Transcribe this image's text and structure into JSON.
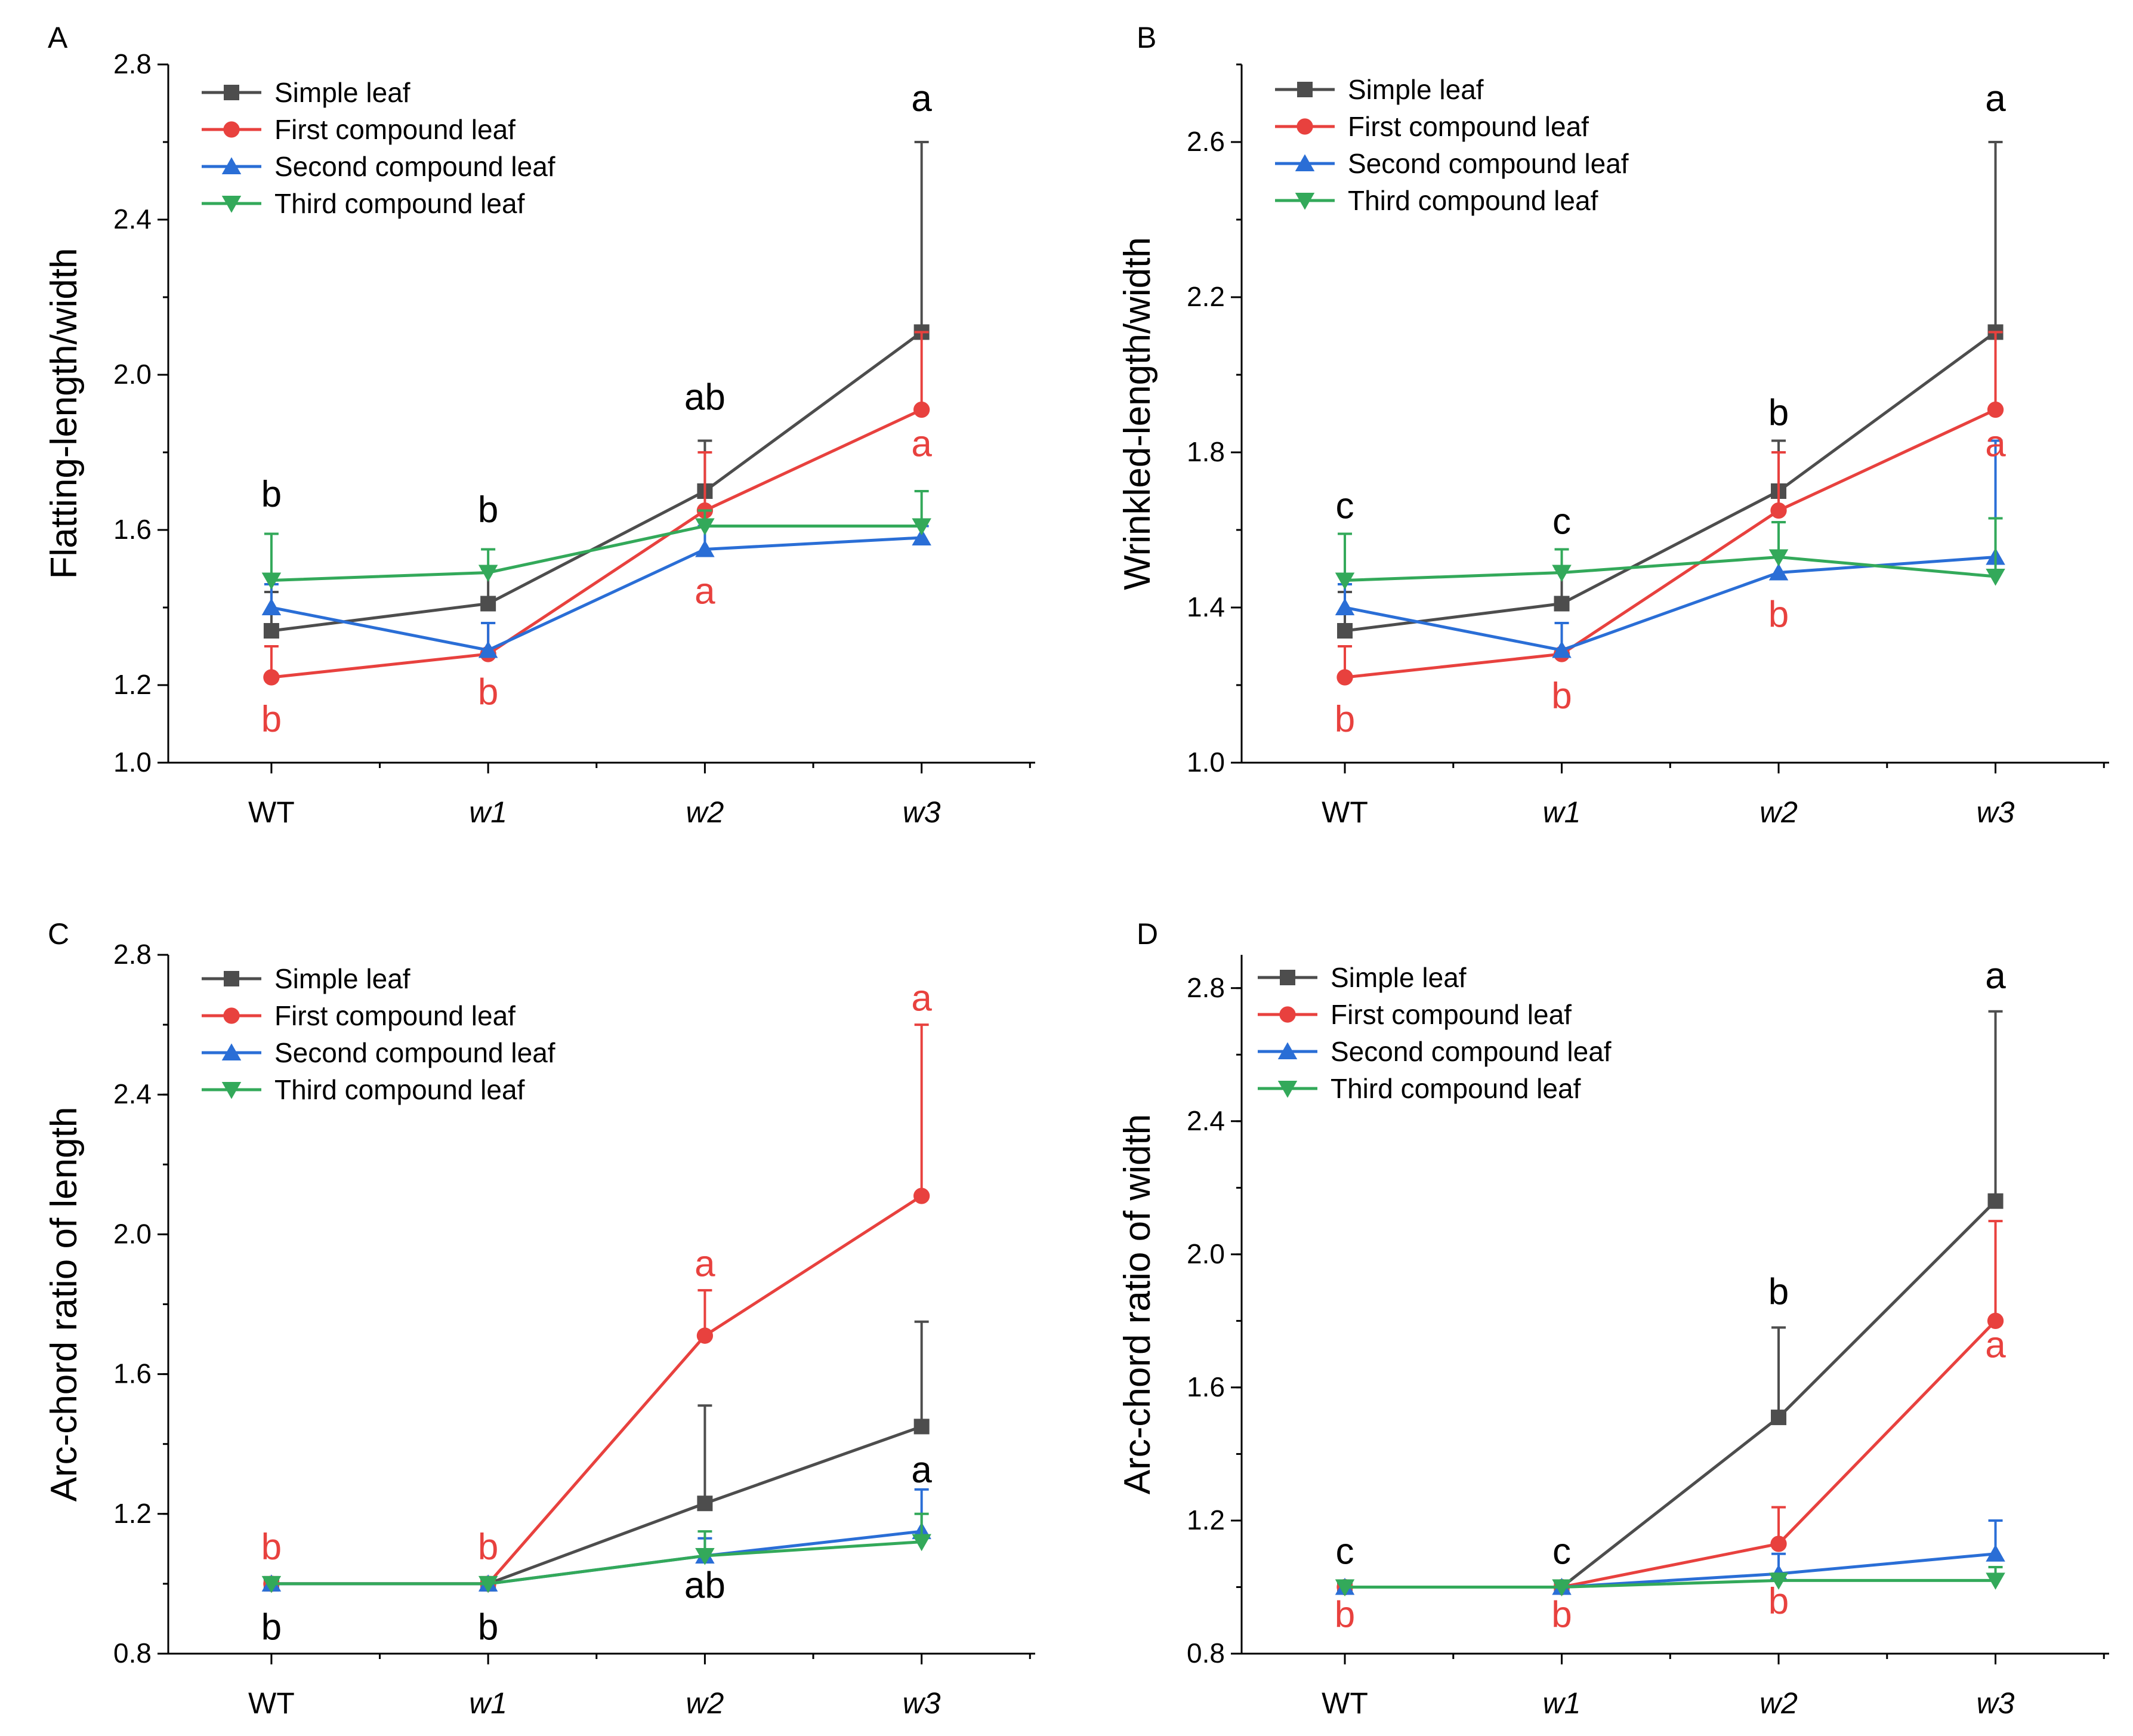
{
  "chart_data": [
    {
      "panel": "A",
      "type": "line",
      "ylabel": "Flatting-length/width",
      "categories": [
        "WT",
        "w1",
        "w2",
        "w3"
      ],
      "ylim": [
        1.0,
        2.8
      ],
      "yticks": [
        "1.0",
        "1.2",
        "1.6",
        "2.0",
        "2.4",
        "2.8"
      ],
      "ytick_values": [
        1.0,
        1.2,
        1.6,
        2.0,
        2.4,
        2.8
      ],
      "minor_step": 0.2,
      "series": [
        {
          "name": "Simple leaf",
          "color": "#4d4d4d",
          "marker": "square",
          "values": [
            1.34,
            1.41,
            1.7,
            2.11
          ],
          "err": [
            0.1,
            0.09,
            0.13,
            0.49
          ]
        },
        {
          "name": "First compound leaf",
          "color": "#e8413e",
          "marker": "circle",
          "values": [
            1.22,
            1.28,
            1.65,
            1.91
          ],
          "err": [
            0.08,
            0.08,
            0.15,
            0.2
          ]
        },
        {
          "name": "Second compound leaf",
          "color": "#2a6ed6",
          "marker": "triangle-up",
          "values": [
            1.4,
            1.29,
            1.55,
            1.58
          ],
          "err": [
            0.06,
            0.07,
            0.06,
            0.03
          ]
        },
        {
          "name": "Third compound leaf",
          "color": "#33a95a",
          "marker": "triangle-down",
          "values": [
            1.47,
            1.49,
            1.61,
            1.61
          ],
          "err": [
            0.12,
            0.06,
            0.04,
            0.09
          ]
        }
      ],
      "annotations": [
        {
          "text": "b",
          "color": "black",
          "cat": 0,
          "y": 1.66
        },
        {
          "text": "b",
          "color": "black",
          "cat": 1,
          "y": 1.62
        },
        {
          "text": "ab",
          "color": "black",
          "cat": 2,
          "y": 1.91
        },
        {
          "text": "a",
          "color": "black",
          "cat": 3,
          "y": 2.68
        },
        {
          "text": "b",
          "color": "red",
          "cat": 0,
          "y": 1.08
        },
        {
          "text": "b",
          "color": "red",
          "cat": 1,
          "y": 1.15
        },
        {
          "text": "a",
          "color": "red",
          "cat": 2,
          "y": 1.41
        },
        {
          "text": "a",
          "color": "red",
          "cat": 3,
          "y": 1.79
        }
      ]
    },
    {
      "panel": "B",
      "type": "line",
      "ylabel": "Wrinkled-length/width",
      "categories": [
        "WT",
        "w1",
        "w2",
        "w3"
      ],
      "ylim": [
        1.0,
        2.8
      ],
      "yticks": [
        "1.0",
        "1.4",
        "1.8",
        "2.2",
        "2.6"
      ],
      "ytick_values": [
        1.0,
        1.4,
        1.8,
        2.2,
        2.6
      ],
      "minor_step": 0.2,
      "series": [
        {
          "name": "Simple leaf",
          "color": "#4d4d4d",
          "marker": "square",
          "values": [
            1.34,
            1.41,
            1.7,
            2.11
          ],
          "err": [
            0.1,
            0.09,
            0.13,
            0.49
          ]
        },
        {
          "name": "First compound leaf",
          "color": "#e8413e",
          "marker": "circle",
          "values": [
            1.22,
            1.28,
            1.65,
            1.91
          ],
          "err": [
            0.08,
            0.08,
            0.15,
            0.2
          ]
        },
        {
          "name": "Second compound leaf",
          "color": "#2a6ed6",
          "marker": "triangle-up",
          "values": [
            1.4,
            1.29,
            1.49,
            1.53
          ],
          "err": [
            0.06,
            0.07,
            0.13,
            0.3
          ]
        },
        {
          "name": "Third compound leaf",
          "color": "#33a95a",
          "marker": "triangle-down",
          "values": [
            1.47,
            1.49,
            1.53,
            1.48
          ],
          "err": [
            0.12,
            0.06,
            0.09,
            0.15
          ]
        }
      ],
      "annotations": [
        {
          "text": "c",
          "color": "black",
          "cat": 0,
          "y": 1.63
        },
        {
          "text": "c",
          "color": "black",
          "cat": 1,
          "y": 1.59
        },
        {
          "text": "b",
          "color": "black",
          "cat": 2,
          "y": 1.87
        },
        {
          "text": "a",
          "color": "black",
          "cat": 3,
          "y": 2.68
        },
        {
          "text": "b",
          "color": "red",
          "cat": 0,
          "y": 1.08
        },
        {
          "text": "b",
          "color": "red",
          "cat": 1,
          "y": 1.14
        },
        {
          "text": "b",
          "color": "red",
          "cat": 2,
          "y": 1.35
        },
        {
          "text": "a",
          "color": "red",
          "cat": 3,
          "y": 1.79
        }
      ]
    },
    {
      "panel": "C",
      "type": "line",
      "ylabel": "Arc-chord ratio of length",
      "categories": [
        "WT",
        "w1",
        "w2",
        "w3"
      ],
      "ylim": [
        0.8,
        2.8
      ],
      "yticks": [
        "0.8",
        "1.2",
        "1.6",
        "2.0",
        "2.4",
        "2.8"
      ],
      "ytick_values": [
        0.8,
        1.2,
        1.6,
        2.0,
        2.4,
        2.8
      ],
      "minor_step": 0.2,
      "series": [
        {
          "name": "Simple leaf",
          "color": "#4d4d4d",
          "marker": "square",
          "values": [
            1.0,
            1.0,
            1.23,
            1.45
          ],
          "err": [
            0.0,
            0.0,
            0.28,
            0.3
          ]
        },
        {
          "name": "First compound leaf",
          "color": "#e8413e",
          "marker": "circle",
          "values": [
            1.0,
            1.0,
            1.71,
            2.11
          ],
          "err": [
            0.0,
            0.0,
            0.13,
            0.49
          ]
        },
        {
          "name": "Second compound leaf",
          "color": "#2a6ed6",
          "marker": "triangle-up",
          "values": [
            1.0,
            1.0,
            1.08,
            1.15
          ],
          "err": [
            0.0,
            0.0,
            0.05,
            0.12
          ]
        },
        {
          "name": "Third compound leaf",
          "color": "#33a95a",
          "marker": "triangle-down",
          "values": [
            1.0,
            1.0,
            1.08,
            1.12
          ],
          "err": [
            0.0,
            0.0,
            0.07,
            0.08
          ]
        }
      ],
      "annotations": [
        {
          "text": "b",
          "color": "red",
          "cat": 0,
          "y": 1.07
        },
        {
          "text": "b",
          "color": "red",
          "cat": 1,
          "y": 1.07
        },
        {
          "text": "a",
          "color": "red",
          "cat": 2,
          "y": 1.88
        },
        {
          "text": "a",
          "color": "red",
          "cat": 3,
          "y": 2.64
        },
        {
          "text": "b",
          "color": "black",
          "cat": 0,
          "y": 0.84
        },
        {
          "text": "b",
          "color": "black",
          "cat": 1,
          "y": 0.84
        },
        {
          "text": "ab",
          "color": "black",
          "cat": 2,
          "y": 0.96
        },
        {
          "text": "a",
          "color": "black",
          "cat": 3,
          "y": 1.29
        }
      ]
    },
    {
      "panel": "D",
      "type": "line",
      "ylabel": "Arc-chord ratio of width",
      "categories": [
        "WT",
        "w1",
        "w2",
        "w3"
      ],
      "ylim": [
        0.8,
        2.9
      ],
      "yticks": [
        "0.8",
        "1.2",
        "1.6",
        "2.0",
        "2.4",
        "2.8"
      ],
      "ytick_values": [
        0.8,
        1.2,
        1.6,
        2.0,
        2.4,
        2.8
      ],
      "minor_step": 0.2,
      "series": [
        {
          "name": "Simple leaf",
          "color": "#4d4d4d",
          "marker": "square",
          "values": [
            1.0,
            1.0,
            1.51,
            2.16
          ],
          "err": [
            0.0,
            0.0,
            0.27,
            0.57
          ]
        },
        {
          "name": "First compound leaf",
          "color": "#e8413e",
          "marker": "circle",
          "values": [
            1.0,
            1.0,
            1.13,
            1.8
          ],
          "err": [
            0.0,
            0.0,
            0.11,
            0.3
          ]
        },
        {
          "name": "Second compound leaf",
          "color": "#2a6ed6",
          "marker": "triangle-up",
          "values": [
            1.0,
            1.0,
            1.04,
            1.1
          ],
          "err": [
            0.0,
            0.0,
            0.06,
            0.1
          ]
        },
        {
          "name": "Third compound leaf",
          "color": "#33a95a",
          "marker": "triangle-down",
          "values": [
            1.0,
            1.0,
            1.02,
            1.02
          ],
          "err": [
            0.0,
            0.0,
            0.02,
            0.04
          ]
        }
      ],
      "annotations": [
        {
          "text": "c",
          "color": "black",
          "cat": 0,
          "y": 1.07
        },
        {
          "text": "c",
          "color": "black",
          "cat": 1,
          "y": 1.07
        },
        {
          "text": "b",
          "color": "black",
          "cat": 2,
          "y": 1.85
        },
        {
          "text": "a",
          "color": "black",
          "cat": 3,
          "y": 2.8
        },
        {
          "text": "b",
          "color": "red",
          "cat": 0,
          "y": 0.88
        },
        {
          "text": "b",
          "color": "red",
          "cat": 1,
          "y": 0.88
        },
        {
          "text": "b",
          "color": "red",
          "cat": 2,
          "y": 0.92
        },
        {
          "text": "a",
          "color": "red",
          "cat": 3,
          "y": 1.69
        }
      ]
    }
  ]
}
